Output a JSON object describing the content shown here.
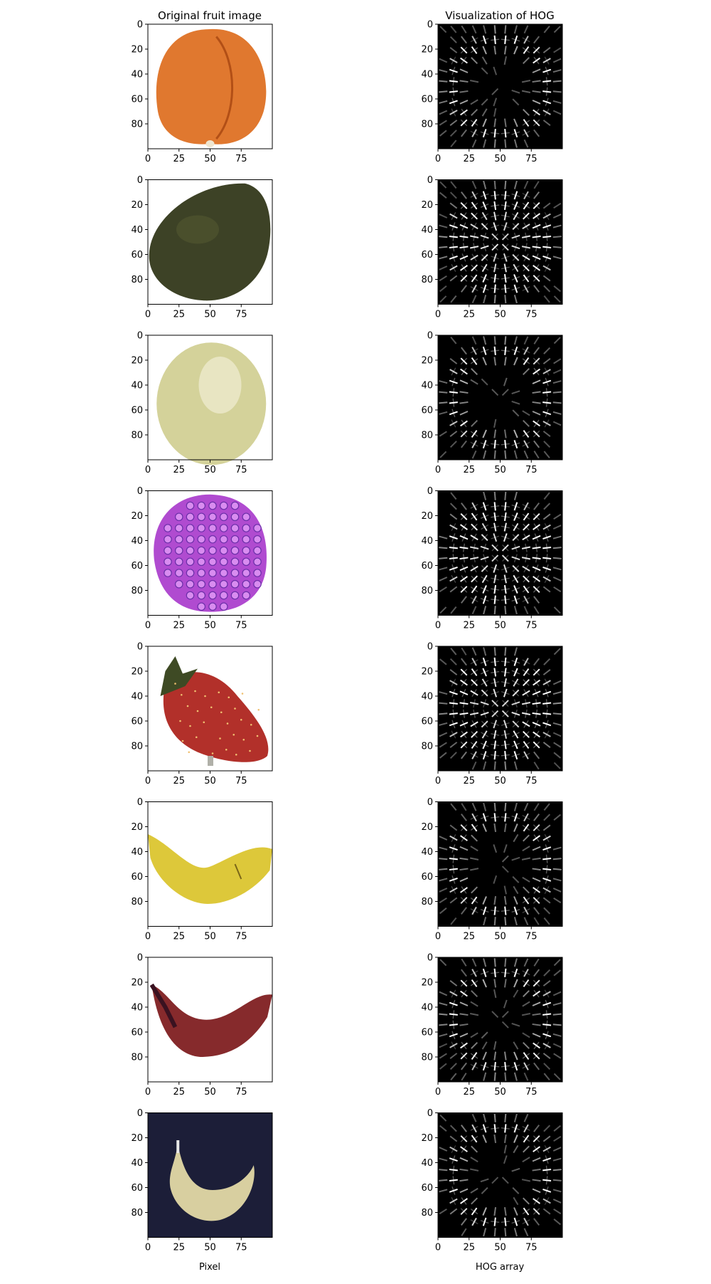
{
  "columns": {
    "left_title": "Original fruit image",
    "right_title": "Visualization of HOG",
    "left_xlabel": "Pixel",
    "right_xlabel": "HOG array"
  },
  "axes": {
    "x_ticks": [
      "0",
      "25",
      "50",
      "75"
    ],
    "y_ticks": [
      "0",
      "20",
      "40",
      "60",
      "80"
    ]
  },
  "fruits": [
    {
      "kind": "apricot",
      "bg": "#ffffff",
      "colors": {
        "main": "#e0782f",
        "dark": "#b24f16",
        "light": "#f0a060"
      }
    },
    {
      "kind": "avocado",
      "bg": "#ffffff",
      "colors": {
        "main": "#3d4226",
        "dark": "#1e2210",
        "light": "#5e6538"
      }
    },
    {
      "kind": "grape",
      "bg": "#ffffff",
      "colors": {
        "main": "#d4d29a",
        "dark": "#9fa568",
        "light": "#eceacc"
      }
    },
    {
      "kind": "raspberry",
      "bg": "#ffffff",
      "colors": {
        "main": "#b04bd0",
        "dark": "#6a2fa8",
        "light": "#d98cf0"
      }
    },
    {
      "kind": "strawberry",
      "bg": "#ffffff",
      "colors": {
        "main": "#b2302a",
        "dark": "#6d1612",
        "light": "#d55a4c"
      }
    },
    {
      "kind": "banana",
      "bg": "#ffffff",
      "colors": {
        "main": "#ddc83a",
        "dark": "#7a6618",
        "light": "#f0e070"
      }
    },
    {
      "kind": "red-banana",
      "bg": "#ffffff",
      "colors": {
        "main": "#862a2c",
        "dark": "#3a1220",
        "light": "#b04a48"
      }
    },
    {
      "kind": "banana-dark-bg",
      "bg": "#1c1e38",
      "colors": {
        "main": "#d8cfa0",
        "dark": "#8a7e50",
        "light": "#eee6c8"
      }
    }
  ]
}
